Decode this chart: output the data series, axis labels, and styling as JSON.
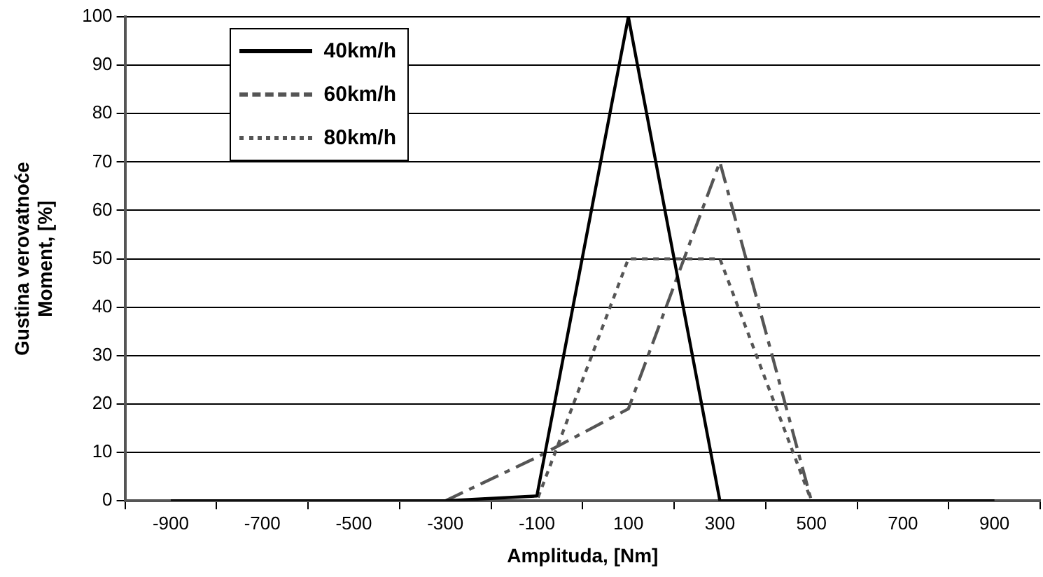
{
  "chart_data": {
    "type": "line",
    "xlabel": "Amplituda, [Nm]",
    "ylabel": "Gustina verovatnoće\nMoment, [%]",
    "categories": [
      "-900",
      "-700",
      "-500",
      "-300",
      "-100",
      "100",
      "300",
      "500",
      "700",
      "900"
    ],
    "series": [
      {
        "name": "40km/h",
        "color": "#000000",
        "line_style": "solid",
        "values": [
          0,
          0,
          0,
          0,
          1,
          100,
          0,
          0,
          0,
          0
        ]
      },
      {
        "name": "60km/h",
        "color": "#555555",
        "line_style": "dashed",
        "values": [
          0,
          0,
          0,
          0,
          9,
          19,
          70,
          0,
          0,
          0
        ]
      },
      {
        "name": "80km/h",
        "color": "#555555",
        "line_style": "dotted",
        "values": [
          0,
          0,
          0,
          0,
          0,
          50,
          50,
          0,
          0,
          0
        ]
      }
    ],
    "ylim": [
      0,
      100
    ],
    "yticks": [
      0,
      10,
      20,
      30,
      40,
      50,
      60,
      70,
      80,
      90,
      100
    ],
    "grid": "y",
    "legend": "top left",
    "marker": "none"
  }
}
